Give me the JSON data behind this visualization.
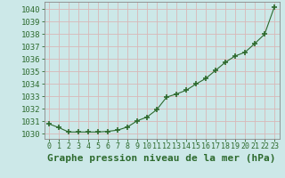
{
  "x": [
    0,
    1,
    2,
    3,
    4,
    5,
    6,
    7,
    8,
    9,
    10,
    11,
    12,
    13,
    14,
    15,
    16,
    17,
    18,
    19,
    20,
    21,
    22,
    23
  ],
  "y": [
    1030.8,
    1030.5,
    1030.15,
    1030.15,
    1030.15,
    1030.15,
    1030.2,
    1030.3,
    1030.55,
    1031.05,
    1031.35,
    1031.95,
    1032.95,
    1033.2,
    1033.5,
    1034.0,
    1034.45,
    1035.1,
    1035.75,
    1036.25,
    1036.55,
    1037.25,
    1038.0,
    1040.2
  ],
  "line_color": "#2d6a2d",
  "marker": "+",
  "marker_size": 5,
  "marker_lw": 1.2,
  "bg_color": "#cce8e8",
  "grid_color": "#d8b8b8",
  "xlabel": "Graphe pression niveau de la mer (hPa)",
  "xlabel_color": "#2d6a2d",
  "tick_color": "#2d6a2d",
  "spine_color": "#888888",
  "ylabel_ticks": [
    1030,
    1031,
    1032,
    1033,
    1034,
    1035,
    1036,
    1037,
    1038,
    1039,
    1040
  ],
  "xlim": [
    -0.5,
    23.5
  ],
  "ylim": [
    1029.6,
    1040.6
  ],
  "tick_fontsize": 6.5,
  "xlabel_fontsize": 8
}
